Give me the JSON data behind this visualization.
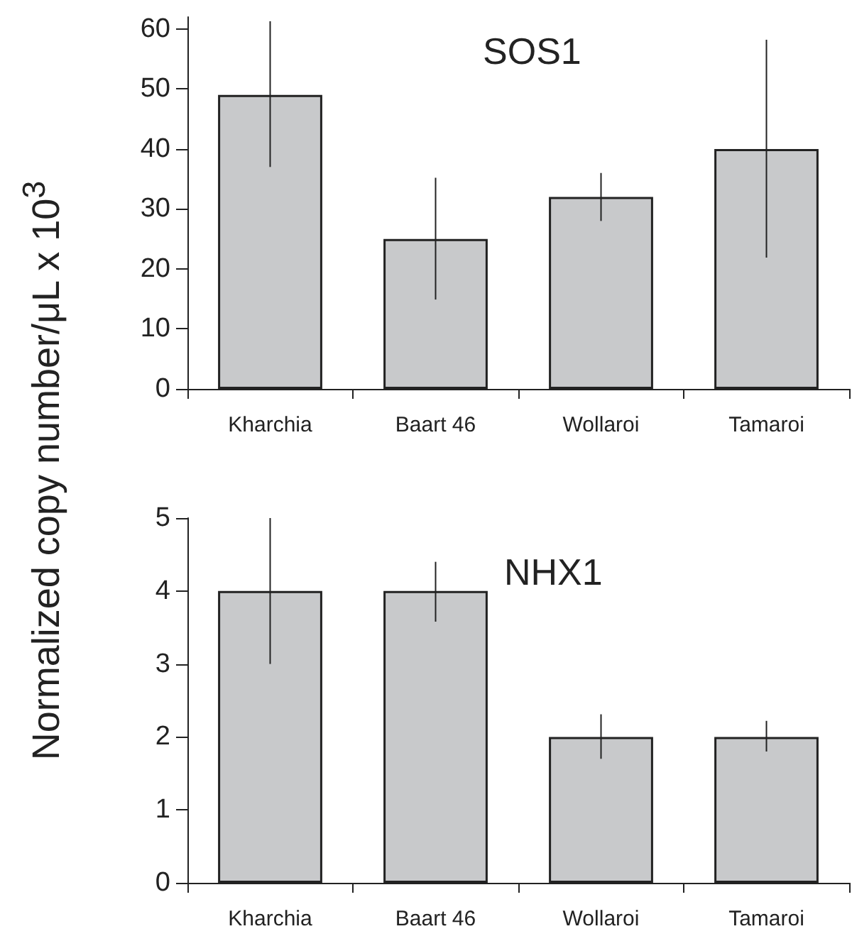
{
  "chart_data": [
    {
      "type": "bar",
      "title": "SOS1",
      "ylabel": "Normalized copy number/μL x 10$^{3}$",
      "categories": [
        "Kharchia",
        "Baart 46",
        "Wollaroi",
        "Tamaroi"
      ],
      "values": [
        49,
        25,
        32,
        40
      ],
      "errors": [
        [
          37,
          61.3
        ],
        [
          14.9,
          35.2
        ],
        [
          28,
          36
        ],
        [
          21.9,
          58.2
        ]
      ],
      "color": "#c8c9cb",
      "ylim": [
        0,
        62
      ],
      "yticks": [
        0,
        10,
        20,
        30,
        40,
        50,
        60
      ]
    },
    {
      "type": "bar",
      "title": "NHX1",
      "categories": [
        "Kharchia",
        "Baart 46",
        "Wollaroi",
        "Tamaroi"
      ],
      "values": [
        4,
        4,
        2,
        2
      ],
      "errors": [
        [
          3,
          5
        ],
        [
          3.58,
          4.4
        ],
        [
          1.7,
          2.31
        ],
        [
          1.8,
          2.22
        ]
      ],
      "color": "#c8c9cb",
      "ylim": [
        0,
        5
      ],
      "yticks": [
        0,
        1,
        2,
        3,
        4,
        5
      ]
    }
  ]
}
